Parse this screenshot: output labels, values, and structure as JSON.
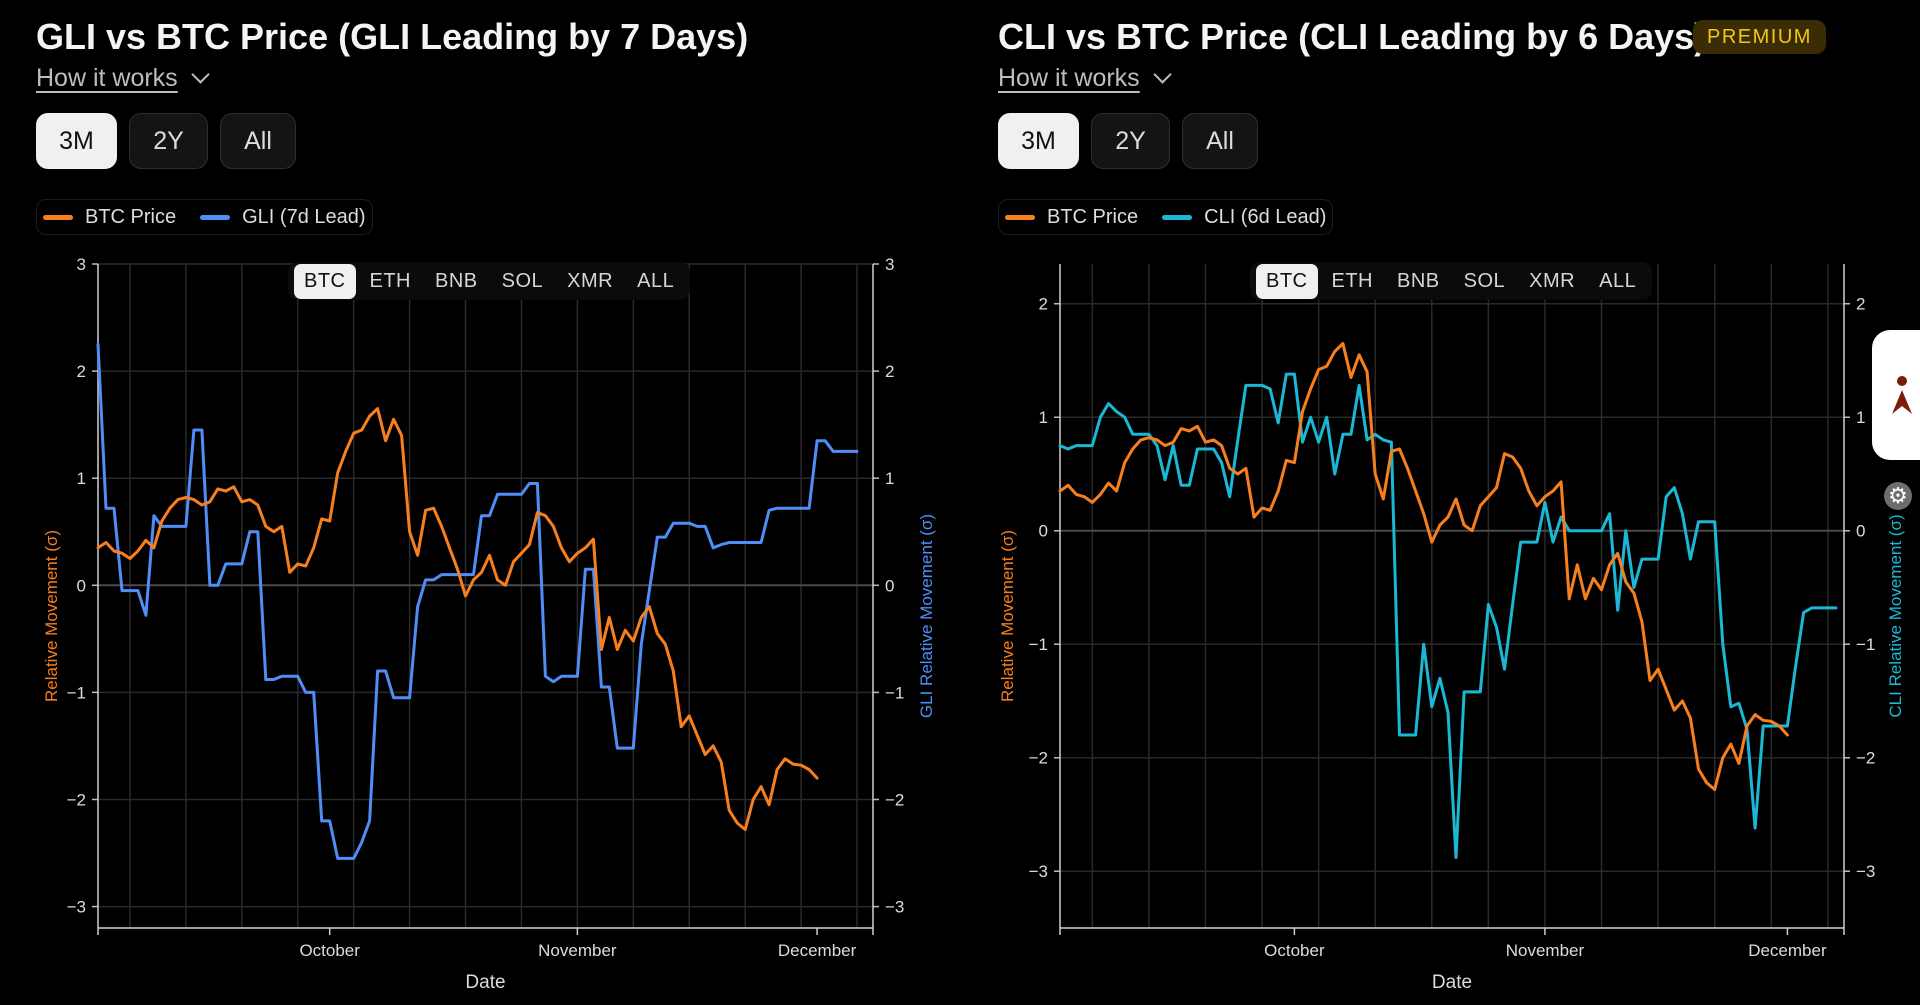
{
  "panels": [
    {
      "title": "GLI vs BTC Price (GLI Leading by 7 Days)",
      "how_it_works": "How it works",
      "ranges": [
        "3M",
        "2Y",
        "All"
      ],
      "selected_range": "3M",
      "legend": [
        "BTC Price",
        "GLI (7d Lead)"
      ],
      "coins": [
        "BTC",
        "ETH",
        "BNB",
        "SOL",
        "XMR",
        "ALL"
      ],
      "selected_coin": "BTC"
    },
    {
      "title": "CLI vs BTC Price (CLI Leading by 6 Days)",
      "badge": "PREMIUM",
      "how_it_works": "How it works",
      "ranges": [
        "3M",
        "2Y",
        "All"
      ],
      "selected_range": "3M",
      "legend": [
        "BTC Price",
        "CLI (6d Lead)"
      ],
      "coins": [
        "BTC",
        "ETH",
        "BNB",
        "SOL",
        "XMR",
        "ALL"
      ],
      "selected_coin": "BTC"
    }
  ],
  "colors": {
    "btc": "#f77f1e",
    "gli": "#4f8df7",
    "cli": "#1bb8d6",
    "premium": "#f5c518"
  },
  "icons": [
    "chevron-down-icon",
    "settings-gear-icon",
    "app-logo-icon"
  ],
  "chart_data": [
    {
      "type": "line",
      "title": "GLI vs BTC Price (GLI Leading by 7 Days)",
      "xlabel": "Date",
      "ylabel": "Relative Movement (σ)",
      "ylabel_right": "GLI Relative Movement (σ)",
      "ylim": [
        -3.2,
        3.0
      ],
      "yticks": [
        -3,
        -2,
        -1,
        0,
        1,
        2,
        3
      ],
      "xlim_days": [
        0,
        97
      ],
      "xticks": [
        {
          "day": 29,
          "label": "October"
        },
        {
          "day": 60,
          "label": "November"
        },
        {
          "day": 90,
          "label": "December"
        }
      ],
      "grid": true,
      "series": [
        {
          "name": "BTC Price",
          "color": "#f77f1e",
          "x_start": 0,
          "values": [
            0.35,
            0.4,
            0.32,
            0.3,
            0.25,
            0.32,
            0.42,
            0.35,
            0.6,
            0.72,
            0.8,
            0.82,
            0.8,
            0.75,
            0.78,
            0.9,
            0.88,
            0.92,
            0.78,
            0.8,
            0.75,
            0.55,
            0.5,
            0.55,
            0.12,
            0.2,
            0.18,
            0.35,
            0.62,
            0.6,
            1.05,
            1.25,
            1.42,
            1.45,
            1.58,
            1.65,
            1.35,
            1.55,
            1.4,
            0.5,
            0.28,
            0.7,
            0.72,
            0.55,
            0.35,
            0.15,
            -0.1,
            0.05,
            0.12,
            0.28,
            0.05,
            0.0,
            0.22,
            0.3,
            0.38,
            0.68,
            0.65,
            0.55,
            0.35,
            0.22,
            0.3,
            0.35,
            0.43,
            -0.6,
            -0.3,
            -0.6,
            -0.42,
            -0.52,
            -0.3,
            -0.2,
            -0.45,
            -0.55,
            -0.8,
            -1.32,
            -1.22,
            -1.4,
            -1.58,
            -1.5,
            -1.65,
            -2.1,
            -2.22,
            -2.28,
            -2.0,
            -1.88,
            -2.05,
            -1.72,
            -1.62,
            -1.67,
            -1.68,
            -1.72,
            -1.8
          ]
        },
        {
          "name": "GLI (7d Lead)",
          "color": "#4f8df7",
          "x_start": 0,
          "values": [
            2.25,
            0.72,
            0.72,
            -0.05,
            -0.05,
            -0.05,
            -0.28,
            0.65,
            0.55,
            0.55,
            0.55,
            0.55,
            1.45,
            1.45,
            0.0,
            0.0,
            0.2,
            0.2,
            0.2,
            0.5,
            0.5,
            -0.88,
            -0.88,
            -0.85,
            -0.85,
            -0.85,
            -1.0,
            -1.0,
            -2.2,
            -2.2,
            -2.55,
            -2.55,
            -2.55,
            -2.4,
            -2.2,
            -0.8,
            -0.8,
            -1.05,
            -1.05,
            -1.05,
            -0.2,
            0.05,
            0.05,
            0.1,
            0.1,
            0.1,
            0.1,
            0.1,
            0.65,
            0.65,
            0.85,
            0.85,
            0.85,
            0.85,
            0.95,
            0.95,
            -0.85,
            -0.9,
            -0.85,
            -0.85,
            -0.85,
            0.15,
            0.15,
            -0.95,
            -0.95,
            -1.52,
            -1.52,
            -1.52,
            -0.55,
            -0.05,
            0.45,
            0.45,
            0.58,
            0.58,
            0.58,
            0.55,
            0.55,
            0.35,
            0.38,
            0.4,
            0.4,
            0.4,
            0.4,
            0.4,
            0.7,
            0.72,
            0.72,
            0.72,
            0.72,
            0.72,
            1.35,
            1.35,
            1.25,
            1.25,
            1.25,
            1.25
          ]
        }
      ]
    },
    {
      "type": "line",
      "title": "CLI vs BTC Price (CLI Leading by 6 Days)",
      "xlabel": "Date",
      "ylabel": "Relative Movement (σ)",
      "ylabel_right": "CLI Relative Movement (σ)",
      "ylim": [
        -3.5,
        2.35
      ],
      "yticks": [
        -3,
        -2,
        -1,
        0,
        1,
        2
      ],
      "xlim_days": [
        0,
        97
      ],
      "xticks": [
        {
          "day": 29,
          "label": "October"
        },
        {
          "day": 60,
          "label": "November"
        },
        {
          "day": 90,
          "label": "December"
        }
      ],
      "grid": true,
      "series": [
        {
          "name": "BTC Price",
          "color": "#f77f1e",
          "x_start": 0,
          "values": [
            0.35,
            0.4,
            0.32,
            0.3,
            0.25,
            0.32,
            0.42,
            0.35,
            0.6,
            0.72,
            0.8,
            0.82,
            0.8,
            0.75,
            0.78,
            0.9,
            0.88,
            0.92,
            0.78,
            0.8,
            0.75,
            0.55,
            0.5,
            0.55,
            0.12,
            0.2,
            0.18,
            0.35,
            0.62,
            0.6,
            1.05,
            1.25,
            1.42,
            1.45,
            1.58,
            1.65,
            1.35,
            1.55,
            1.4,
            0.5,
            0.28,
            0.7,
            0.72,
            0.55,
            0.35,
            0.15,
            -0.1,
            0.05,
            0.12,
            0.28,
            0.05,
            0.0,
            0.22,
            0.3,
            0.38,
            0.68,
            0.65,
            0.55,
            0.35,
            0.22,
            0.3,
            0.35,
            0.43,
            -0.6,
            -0.3,
            -0.6,
            -0.42,
            -0.52,
            -0.3,
            -0.2,
            -0.45,
            -0.55,
            -0.8,
            -1.32,
            -1.22,
            -1.4,
            -1.58,
            -1.5,
            -1.65,
            -2.1,
            -2.22,
            -2.28,
            -2.0,
            -1.88,
            -2.05,
            -1.72,
            -1.62,
            -1.67,
            -1.68,
            -1.72,
            -1.8
          ]
        },
        {
          "name": "CLI (6d Lead)",
          "color": "#1bb8d6",
          "x_start": 0,
          "values": [
            0.75,
            0.72,
            0.75,
            0.75,
            0.75,
            1.0,
            1.12,
            1.05,
            1.0,
            0.85,
            0.85,
            0.85,
            0.75,
            0.45,
            0.75,
            0.4,
            0.4,
            0.72,
            0.72,
            0.72,
            0.6,
            0.3,
            0.8,
            1.28,
            1.28,
            1.28,
            1.25,
            0.95,
            1.38,
            1.38,
            0.78,
            1.0,
            0.78,
            1.0,
            0.5,
            0.85,
            0.85,
            1.28,
            0.8,
            0.85,
            0.8,
            0.78,
            -1.8,
            -1.8,
            -1.8,
            -1.0,
            -1.55,
            -1.3,
            -1.6,
            -2.88,
            -1.42,
            -1.42,
            -1.42,
            -0.65,
            -0.85,
            -1.22,
            -0.65,
            -0.1,
            -0.1,
            -0.1,
            0.25,
            -0.1,
            0.12,
            0.0,
            0.0,
            0.0,
            0.0,
            0.0,
            0.15,
            -0.7,
            0.0,
            -0.5,
            -0.25,
            -0.25,
            -0.25,
            0.3,
            0.38,
            0.15,
            -0.25,
            0.08,
            0.08,
            0.08,
            -1.0,
            -1.55,
            -1.52,
            -1.75,
            -2.62,
            -1.72,
            -1.72,
            -1.72,
            -1.72,
            -1.2,
            -0.72,
            -0.68,
            -0.68,
            -0.68,
            -0.68
          ]
        }
      ]
    }
  ]
}
